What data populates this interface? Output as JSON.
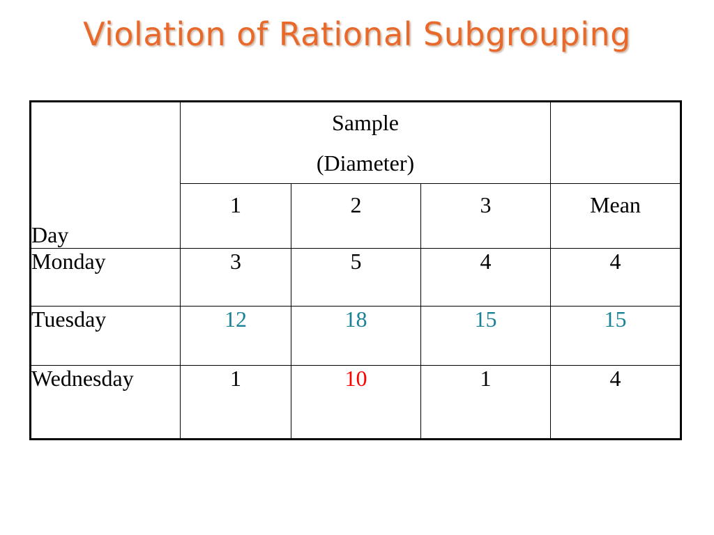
{
  "slide": {
    "title": "Violation of Rational Subgrouping",
    "title_color": "#e8692a"
  },
  "table": {
    "header": {
      "day_label": "Day",
      "sample_line1": "Sample",
      "sample_line2": "(Diameter)",
      "columns": [
        "1",
        "2",
        "3"
      ],
      "mean_label": "Mean"
    },
    "rows": [
      {
        "day": "Monday",
        "values": [
          "3",
          "5",
          "4"
        ],
        "mean": "4",
        "highlight": "none"
      },
      {
        "day": "Tuesday",
        "values": [
          "12",
          "18",
          "15"
        ],
        "mean": "15",
        "highlight": "teal"
      },
      {
        "day": "Wednesday",
        "values": [
          "1",
          "10",
          "1"
        ],
        "mean": "4",
        "highlight": "red on sample 2"
      }
    ],
    "colors": {
      "teal": "#1a8296",
      "red": "#ff0000"
    }
  }
}
